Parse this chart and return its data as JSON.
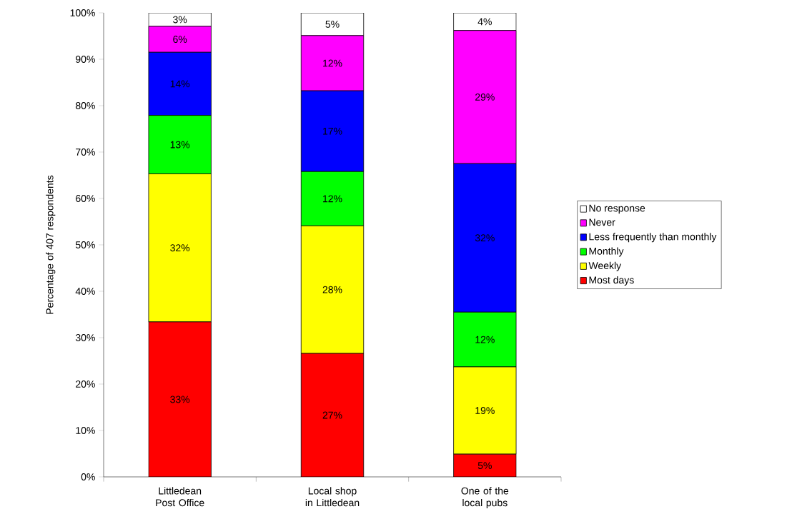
{
  "chart_data": {
    "type": "bar",
    "stacked": true,
    "legend": "right",
    "ylabel": "Percentage of 407 respondents",
    "categories": [
      "Littledean Post Office",
      "Local shop in Littledean",
      "One of the local pubs"
    ],
    "ylim": [
      0,
      100
    ],
    "yticks": [
      {
        "value": 0,
        "label": "0%"
      },
      {
        "value": 10,
        "label": "10%"
      },
      {
        "value": 20,
        "label": "20%"
      },
      {
        "value": 30,
        "label": "30%"
      },
      {
        "value": 40,
        "label": "40%"
      },
      {
        "value": 50,
        "label": "50%"
      },
      {
        "value": 60,
        "label": "60%"
      },
      {
        "value": 70,
        "label": "70%"
      },
      {
        "value": 80,
        "label": "80%"
      },
      {
        "value": 90,
        "label": "90%"
      },
      {
        "value": 100,
        "label": "100%"
      }
    ],
    "series": [
      {
        "name": "Most days",
        "color": "#ff0000",
        "values": [
          33.4,
          26.6,
          4.9
        ],
        "value_labels": [
          "33%",
          "27%",
          "5%"
        ]
      },
      {
        "name": "Weekly",
        "color": "#ffff00",
        "values": [
          31.9,
          27.5,
          18.8
        ],
        "value_labels": [
          "32%",
          "28%",
          "19%"
        ]
      },
      {
        "name": "Monthly",
        "color": "#00ff00",
        "values": [
          12.6,
          11.7,
          11.8
        ],
        "value_labels": [
          "13%",
          "12%",
          "12%"
        ]
      },
      {
        "name": "Less frequently than monthly",
        "color": "#0000ff",
        "values": [
          13.6,
          17.4,
          32.0
        ],
        "value_labels": [
          "14%",
          "17%",
          "32%"
        ]
      },
      {
        "name": "Never",
        "color": "#ff00ff",
        "values": [
          5.6,
          11.9,
          28.7
        ],
        "value_labels": [
          "6%",
          "12%",
          "29%"
        ]
      },
      {
        "name": "No response",
        "color": "#ffffff",
        "values": [
          2.9,
          4.9,
          3.8
        ],
        "value_labels": [
          "3%",
          "5%",
          "4%"
        ]
      }
    ]
  }
}
